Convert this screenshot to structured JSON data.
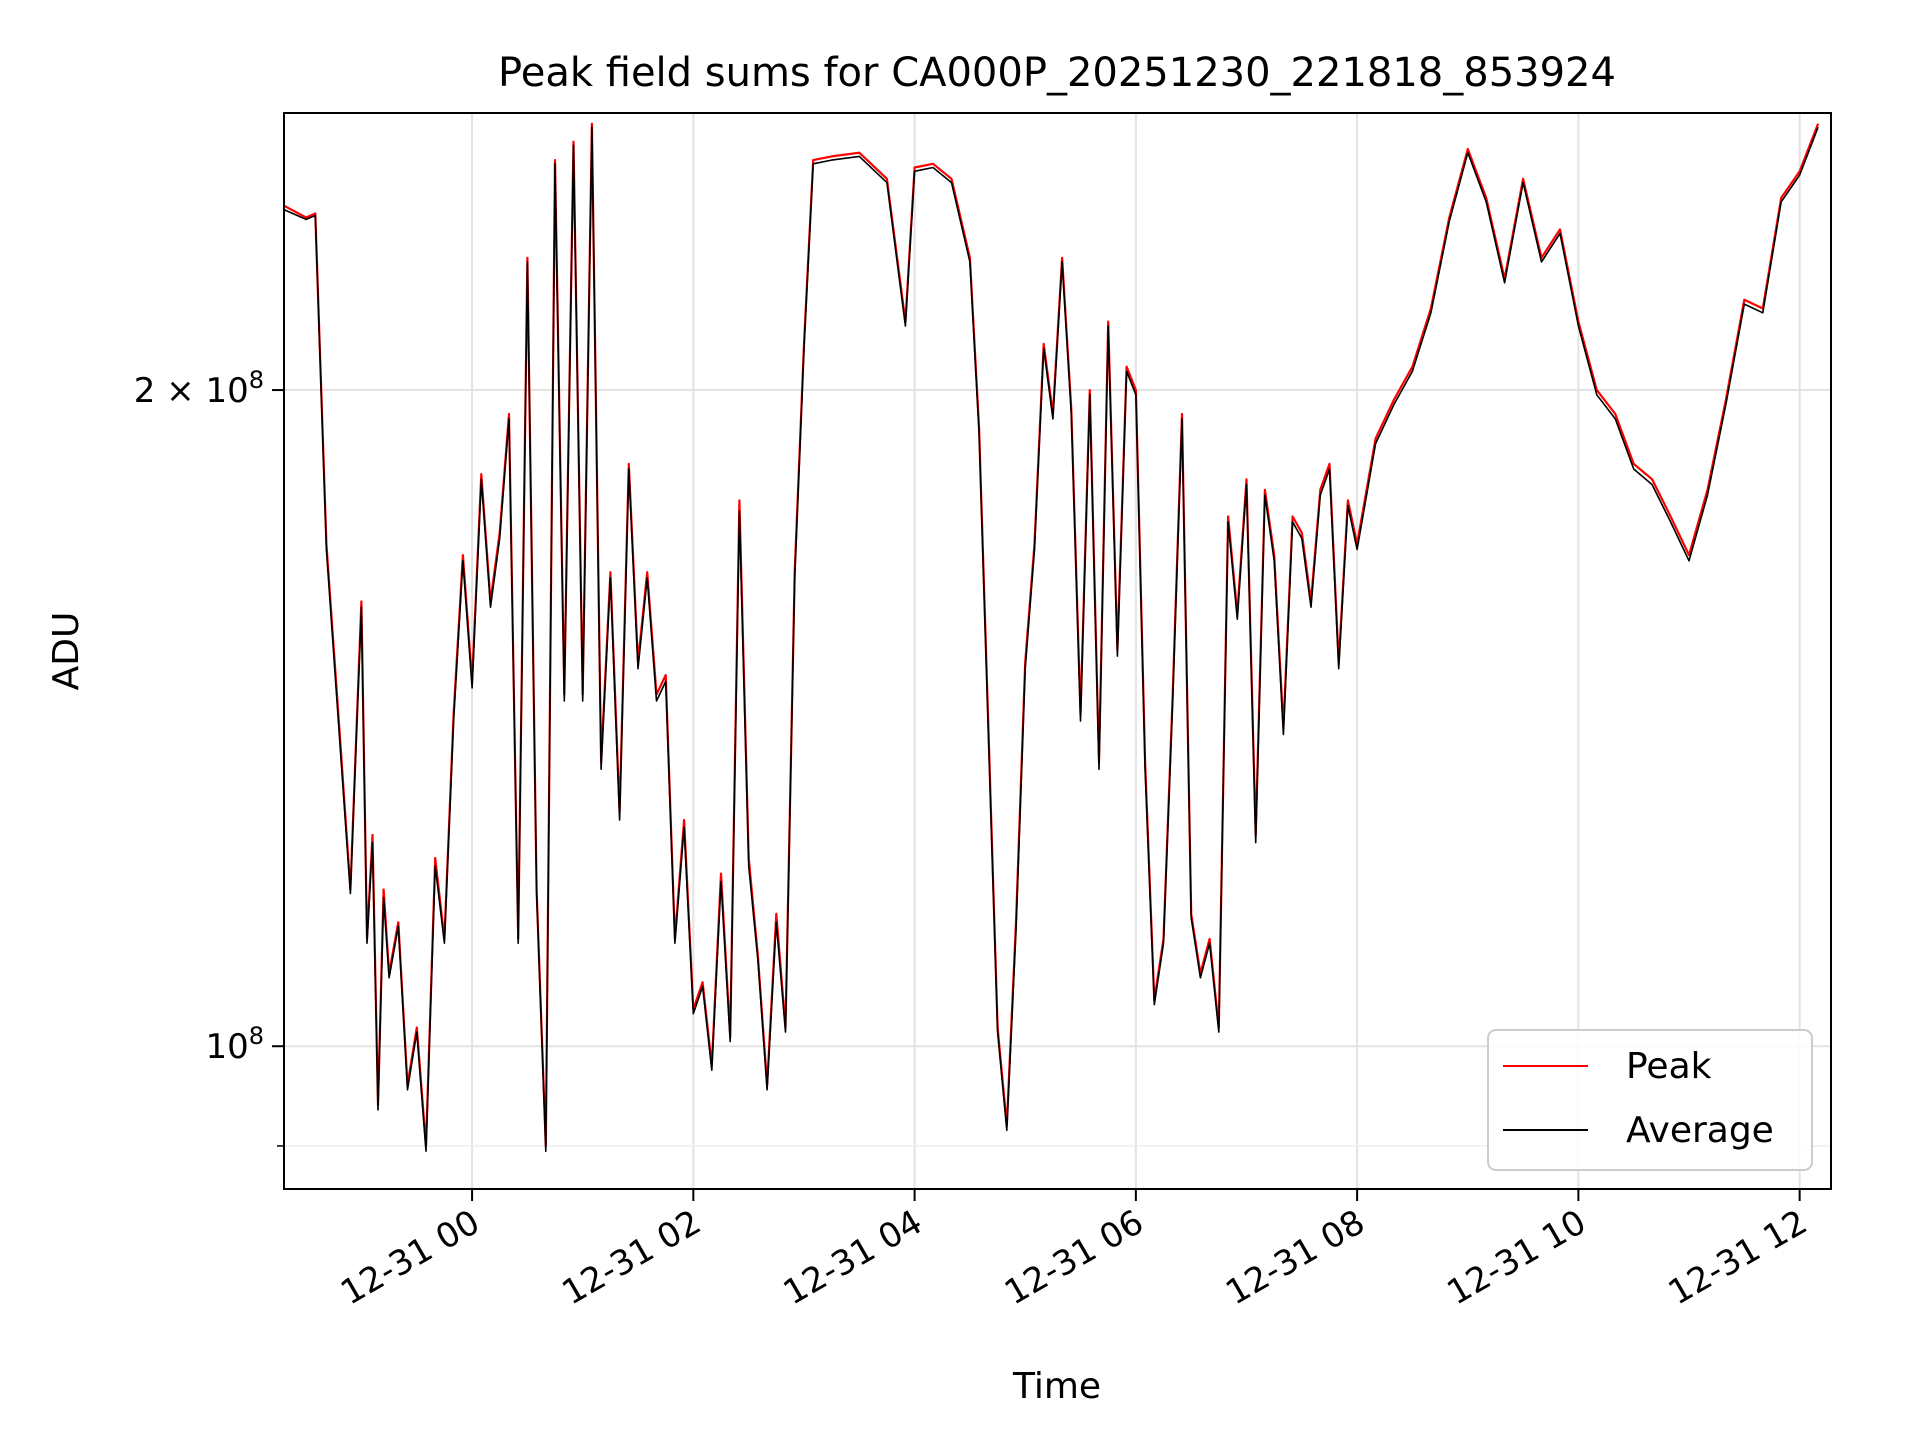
{
  "chart_data": {
    "type": "line",
    "title": "Peak field sums for CA000P_20251230_221818_853924",
    "xlabel": "Time",
    "ylabel": "ADU",
    "y_scale": "log",
    "ylim": [
      86000000,
      268000000
    ],
    "xlim": [
      "12-30 22:18",
      "12-31 12:17"
    ],
    "x_ticks": [
      "12-31 00",
      "12-31 02",
      "12-31 04",
      "12-31 06",
      "12-31 08",
      "12-31 10",
      "12-31 12"
    ],
    "x_tick_rotation_deg": 30,
    "y_ticks": [
      {
        "value": 100000000,
        "label": "10",
        "exp": "8"
      },
      {
        "value": 200000000,
        "label": "2 × 10",
        "exp": "8"
      }
    ],
    "y_minor_ticks": [
      90000000
    ],
    "grid": true,
    "legend": "lower-right",
    "series": [
      {
        "name": "Peak",
        "color": "#ff0000",
        "x": [
          "12-30 22:18",
          "12-30 22:30",
          "12-30 22:35",
          "12-30 22:41",
          "12-30 22:48",
          "12-30 22:54",
          "12-30 23:00",
          "12-30 23:03",
          "12-30 23:06",
          "12-30 23:09",
          "12-30 23:12",
          "12-30 23:15",
          "12-30 23:20",
          "12-30 23:25",
          "12-30 23:30",
          "12-30 23:35",
          "12-30 23:40",
          "12-30 23:45",
          "12-30 23:50",
          "12-30 23:55",
          "12-31 00:00",
          "12-31 00:05",
          "12-31 00:10",
          "12-31 00:15",
          "12-31 00:20",
          "12-31 00:25",
          "12-31 00:30",
          "12-31 00:35",
          "12-31 00:40",
          "12-31 00:45",
          "12-31 00:50",
          "12-31 00:55",
          "12-31 01:00",
          "12-31 01:05",
          "12-31 01:10",
          "12-31 01:15",
          "12-31 01:20",
          "12-31 01:25",
          "12-31 01:30",
          "12-31 01:35",
          "12-31 01:40",
          "12-31 01:45",
          "12-31 01:50",
          "12-31 01:55",
          "12-31 02:00",
          "12-31 02:05",
          "12-31 02:10",
          "12-31 02:15",
          "12-31 02:20",
          "12-31 02:25",
          "12-31 02:30",
          "12-31 02:35",
          "12-31 02:40",
          "12-31 02:45",
          "12-31 02:50",
          "12-31 02:55",
          "12-31 03:00",
          "12-31 03:05",
          "12-31 03:15",
          "12-31 03:30",
          "12-31 03:45",
          "12-31 03:55",
          "12-31 04:00",
          "12-31 04:10",
          "12-31 04:20",
          "12-31 04:30",
          "12-31 04:35",
          "12-31 04:40",
          "12-31 04:45",
          "12-31 04:50",
          "12-31 04:55",
          "12-31 05:00",
          "12-31 05:05",
          "12-31 05:10",
          "12-31 05:15",
          "12-31 05:20",
          "12-31 05:25",
          "12-31 05:30",
          "12-31 05:35",
          "12-31 05:40",
          "12-31 05:45",
          "12-31 05:50",
          "12-31 05:55",
          "12-31 06:00",
          "12-31 06:05",
          "12-31 06:10",
          "12-31 06:15",
          "12-31 06:20",
          "12-31 06:25",
          "12-31 06:30",
          "12-31 06:35",
          "12-31 06:40",
          "12-31 06:45",
          "12-31 06:50",
          "12-31 06:55",
          "12-31 07:00",
          "12-31 07:05",
          "12-31 07:10",
          "12-31 07:15",
          "12-31 07:20",
          "12-31 07:25",
          "12-31 07:30",
          "12-31 07:35",
          "12-31 07:40",
          "12-31 07:45",
          "12-31 07:50",
          "12-31 07:55",
          "12-31 08:00",
          "12-31 08:10",
          "12-31 08:20",
          "12-31 08:30",
          "12-31 08:40",
          "12-31 08:50",
          "12-31 09:00",
          "12-31 09:10",
          "12-31 09:20",
          "12-31 09:30",
          "12-31 09:40",
          "12-31 09:50",
          "12-31 10:00",
          "12-31 10:10",
          "12-31 10:20",
          "12-31 10:30",
          "12-31 10:40",
          "12-31 10:50",
          "12-31 11:00",
          "12-31 11:10",
          "12-31 11:20",
          "12-31 11:30",
          "12-31 11:40",
          "12-31 11:50",
          "12-31 12:00",
          "12-31 12:10"
        ],
        "y": [
          243000000,
          240000000,
          241000000,
          170000000,
          140000000,
          118000000,
          160000000,
          112000000,
          125000000,
          94000000,
          118000000,
          108000000,
          114000000,
          96000000,
          102000000,
          90000000,
          122000000,
          112000000,
          142000000,
          168000000,
          147000000,
          183000000,
          160000000,
          172000000,
          195000000,
          112000000,
          230000000,
          118000000,
          90000000,
          255000000,
          145000000,
          260000000,
          145000000,
          265000000,
          135000000,
          165000000,
          128000000,
          185000000,
          150000000,
          165000000,
          145000000,
          148000000,
          112000000,
          127000000,
          104000000,
          107000000,
          98000000,
          120000000,
          101000000,
          178000000,
          122000000,
          110000000,
          96000000,
          115000000,
          102000000,
          165000000,
          210000000,
          255000000,
          256000000,
          257000000,
          250000000,
          215000000,
          253000000,
          254000000,
          250000000,
          230000000,
          192000000,
          140000000,
          102000000,
          92000000,
          114000000,
          150000000,
          170000000,
          210000000,
          195000000,
          230000000,
          196000000,
          142000000,
          200000000,
          135000000,
          215000000,
          152000000,
          205000000,
          200000000,
          135000000,
          105000000,
          112000000,
          145000000,
          195000000,
          115000000,
          108000000,
          112000000,
          102000000,
          175000000,
          158000000,
          182000000,
          125000000,
          180000000,
          168000000,
          140000000,
          175000000,
          172000000,
          160000000,
          180000000,
          185000000,
          150000000,
          178000000,
          170000000,
          190000000,
          198000000,
          205000000,
          218000000,
          240000000,
          258000000,
          245000000,
          225000000,
          250000000,
          230000000,
          237000000,
          215000000,
          200000000,
          195000000,
          185000000,
          182000000,
          175000000,
          168000000,
          180000000,
          198000000,
          220000000,
          218000000,
          245000000,
          252000000,
          265000000
        ]
      },
      {
        "name": "Average",
        "color": "#000000",
        "x": [
          "12-30 22:18",
          "12-30 22:30",
          "12-30 22:35",
          "12-30 22:41",
          "12-30 22:48",
          "12-30 22:54",
          "12-30 23:00",
          "12-30 23:03",
          "12-30 23:06",
          "12-30 23:09",
          "12-30 23:12",
          "12-30 23:15",
          "12-30 23:20",
          "12-30 23:25",
          "12-30 23:30",
          "12-30 23:35",
          "12-30 23:40",
          "12-30 23:45",
          "12-30 23:50",
          "12-30 23:55",
          "12-31 00:00",
          "12-31 00:05",
          "12-31 00:10",
          "12-31 00:15",
          "12-31 00:20",
          "12-31 00:25",
          "12-31 00:30",
          "12-31 00:35",
          "12-31 00:40",
          "12-31 00:45",
          "12-31 00:50",
          "12-31 00:55",
          "12-31 01:00",
          "12-31 01:05",
          "12-31 01:10",
          "12-31 01:15",
          "12-31 01:20",
          "12-31 01:25",
          "12-31 01:30",
          "12-31 01:35",
          "12-31 01:40",
          "12-31 01:45",
          "12-31 01:50",
          "12-31 01:55",
          "12-31 02:00",
          "12-31 02:05",
          "12-31 02:10",
          "12-31 02:15",
          "12-31 02:20",
          "12-31 02:25",
          "12-31 02:30",
          "12-31 02:35",
          "12-31 02:40",
          "12-31 02:45",
          "12-31 02:50",
          "12-31 02:55",
          "12-31 03:00",
          "12-31 03:05",
          "12-31 03:15",
          "12-31 03:30",
          "12-31 03:45",
          "12-31 03:55",
          "12-31 04:00",
          "12-31 04:10",
          "12-31 04:20",
          "12-31 04:30",
          "12-31 04:35",
          "12-31 04:40",
          "12-31 04:45",
          "12-31 04:50",
          "12-31 04:55",
          "12-31 05:00",
          "12-31 05:05",
          "12-31 05:10",
          "12-31 05:15",
          "12-31 05:20",
          "12-31 05:25",
          "12-31 05:30",
          "12-31 05:35",
          "12-31 05:40",
          "12-31 05:45",
          "12-31 05:50",
          "12-31 05:55",
          "12-31 06:00",
          "12-31 06:05",
          "12-31 06:10",
          "12-31 06:15",
          "12-31 06:20",
          "12-31 06:25",
          "12-31 06:30",
          "12-31 06:35",
          "12-31 06:40",
          "12-31 06:45",
          "12-31 06:50",
          "12-31 06:55",
          "12-31 07:00",
          "12-31 07:05",
          "12-31 07:10",
          "12-31 07:15",
          "12-31 07:20",
          "12-31 07:25",
          "12-31 07:30",
          "12-31 07:35",
          "12-31 07:40",
          "12-31 07:45",
          "12-31 07:50",
          "12-31 07:55",
          "12-31 08:00",
          "12-31 08:10",
          "12-31 08:20",
          "12-31 08:30",
          "12-31 08:40",
          "12-31 08:50",
          "12-31 09:00",
          "12-31 09:10",
          "12-31 09:20",
          "12-31 09:30",
          "12-31 09:40",
          "12-31 09:50",
          "12-31 10:00",
          "12-31 10:10",
          "12-31 10:20",
          "12-31 10:30",
          "12-31 10:40",
          "12-31 10:50",
          "12-31 11:00",
          "12-31 11:10",
          "12-31 11:20",
          "12-31 11:30",
          "12-31 11:40",
          "12-31 11:50",
          "12-31 12:00",
          "12-31 12:10"
        ],
        "y": [
          242000000,
          239500000,
          240500000,
          169000000,
          139000000,
          117500000,
          159000000,
          111500000,
          124000000,
          93500000,
          117000000,
          107500000,
          113500000,
          95500000,
          101500000,
          89500000,
          121000000,
          111500000,
          141000000,
          167000000,
          146000000,
          182000000,
          159000000,
          171000000,
          194000000,
          111500000,
          229000000,
          117500000,
          89500000,
          254000000,
          144000000,
          259000000,
          144000000,
          264000000,
          134000000,
          164000000,
          127000000,
          184000000,
          149000000,
          164000000,
          144000000,
          147000000,
          111500000,
          126000000,
          103500000,
          106500000,
          97500000,
          119000000,
          100500000,
          176000000,
          121000000,
          109500000,
          95500000,
          114000000,
          101500000,
          164000000,
          209000000,
          254000000,
          255000000,
          256000000,
          249000000,
          214000000,
          252000000,
          253000000,
          249000000,
          229000000,
          191000000,
          139000000,
          101500000,
          91500000,
          113000000,
          149000000,
          169000000,
          209000000,
          194000000,
          229000000,
          195000000,
          141000000,
          199000000,
          134000000,
          214000000,
          151000000,
          204000000,
          199000000,
          134000000,
          104500000,
          111500000,
          144000000,
          194000000,
          114500000,
          107500000,
          111500000,
          101500000,
          174000000,
          157000000,
          181000000,
          124000000,
          179000000,
          167000000,
          139000000,
          174000000,
          171000000,
          159000000,
          179000000,
          184000000,
          149000000,
          177000000,
          169000000,
          189000000,
          197000000,
          204000000,
          217000000,
          239000000,
          257000000,
          244000000,
          224000000,
          249000000,
          229000000,
          236000000,
          214000000,
          199000000,
          194000000,
          184000000,
          181000000,
          174000000,
          167000000,
          179000000,
          197000000,
          219000000,
          217000000,
          244000000,
          251000000,
          264000000
        ]
      }
    ]
  }
}
